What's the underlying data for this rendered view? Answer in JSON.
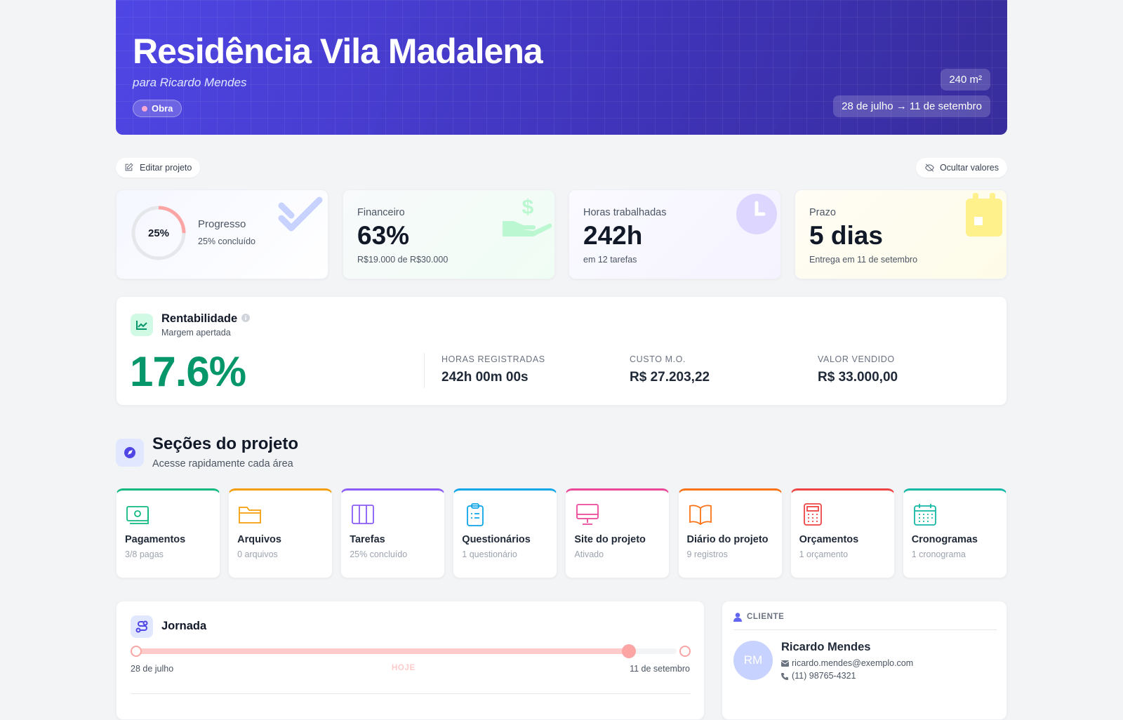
{
  "header": {
    "title": "Residência Vila Madalena",
    "subtitle": "para Ricardo Mendes",
    "status": "Obra",
    "area": "240 m²",
    "dates": "28 de julho → 11 de setembro"
  },
  "actions": {
    "edit": "Editar projeto",
    "hide": "Ocultar valores"
  },
  "stats": {
    "progress": {
      "value": 25,
      "label": "25%",
      "title": "Progresso",
      "detail": "25% concluído"
    },
    "cards": [
      {
        "title": "Financeiro",
        "value": "63%",
        "detail": "R$19.000 de R$30.000"
      },
      {
        "title": "Horas trabalhadas",
        "value": "242h",
        "detail": "em 12 tarefas"
      },
      {
        "title": "Prazo",
        "value": "5 dias",
        "detail": "Entrega em 11 de setembro"
      }
    ]
  },
  "profitability": {
    "title": "Rentabilidade",
    "subtitle": "Margem apertada",
    "value": "17.6%",
    "metrics": [
      {
        "label": "HORAS REGISTRADAS",
        "value": "242h 00m 00s"
      },
      {
        "label": "CUSTO M.O.",
        "value": "R$ 27.203,22"
      },
      {
        "label": "VALOR VENDIDO",
        "value": "R$ 33.000,00"
      }
    ]
  },
  "sections": {
    "title": "Seções do projeto",
    "subtitle": "Acesse rapidamente cada área",
    "items": [
      {
        "name": "Pagamentos",
        "detail": "3/8 pagas"
      },
      {
        "name": "Arquivos",
        "detail": "0 arquivos"
      },
      {
        "name": "Tarefas",
        "detail": "25% concluído"
      },
      {
        "name": "Questionários",
        "detail": "1 questionário"
      },
      {
        "name": "Site do projeto",
        "detail": "Ativado"
      },
      {
        "name": "Diário do projeto",
        "detail": "9 registros"
      },
      {
        "name": "Orçamentos",
        "detail": "1 orçamento"
      },
      {
        "name": "Cronogramas",
        "detail": "1 cronograma"
      }
    ]
  },
  "journey": {
    "title": "Jornada",
    "start": "28 de julho",
    "today": "HOJE",
    "end": "11 de setembro"
  },
  "client": {
    "heading": "CLIENTE",
    "initials": "RM",
    "name": "Ricardo Mendes",
    "email": "ricardo.mendes@exemplo.com",
    "phone": "(11) 98765-4321"
  }
}
